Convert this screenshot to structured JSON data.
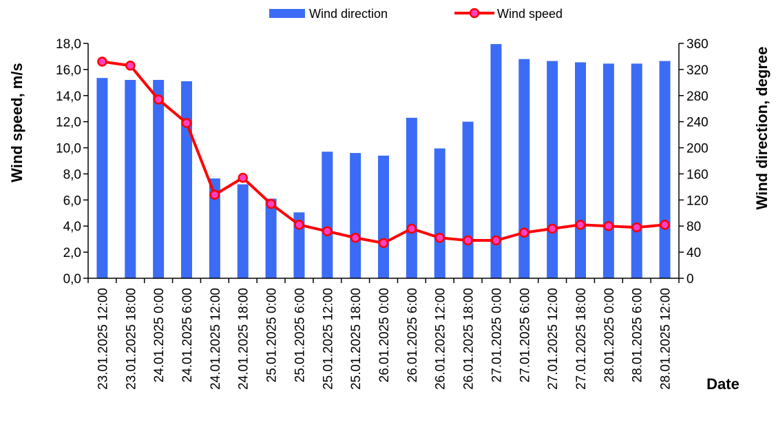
{
  "chart_data": {
    "type": "bar-line-combo",
    "x_title": "Date",
    "categories": [
      "23.01.2025 12:00",
      "23.01.2025 18:00",
      "24.01.2025 0:00",
      "24.01.2025 6:00",
      "24.01.2025 12:00",
      "24.01.2025 18:00",
      "25.01.2025 0:00",
      "25.01.2025 6:00",
      "25.01.2025 12:00",
      "25.01.2025 18:00",
      "26.01.2025 0:00",
      "26.01.2025 6:00",
      "26.01.2025 12:00",
      "26.01.2025 18:00",
      "27.01.2025 0:00",
      "27.01.2025 6:00",
      "27.01.2025 12:00",
      "27.01.2025 18:00",
      "28.01.2025 0:00",
      "28.01.2025 6:00",
      "28.01.2025 12:00"
    ],
    "left_axis": {
      "title": "Wind speed, m/s",
      "range": [
        0,
        18
      ],
      "ticks": [
        "0,0",
        "2,0",
        "4,0",
        "6,0",
        "8,0",
        "10,0",
        "12,0",
        "14,0",
        "16,0",
        "18,0"
      ]
    },
    "right_axis": {
      "title": "Wind direction, degree",
      "range": [
        0,
        360
      ],
      "ticks": [
        "0",
        "40",
        "80",
        "120",
        "160",
        "200",
        "240",
        "280",
        "320",
        "360"
      ]
    },
    "series": [
      {
        "name": "Wind direction",
        "type": "bar",
        "axis": "right",
        "color": "#3c6cf5",
        "values": [
          307,
          304,
          304,
          302,
          153,
          144,
          122,
          101,
          194,
          192,
          188,
          246,
          199,
          240,
          359,
          336,
          333,
          331,
          329,
          329,
          333
        ]
      },
      {
        "name": "Wind speed",
        "type": "line",
        "axis": "left",
        "color": "#ff0000",
        "marker_color": "#ff40c0",
        "values": [
          16.6,
          16.3,
          13.7,
          11.9,
          6.4,
          7.7,
          5.7,
          4.1,
          3.6,
          3.1,
          2.7,
          3.8,
          3.1,
          2.9,
          2.9,
          3.5,
          3.8,
          4.1,
          4.0,
          3.9,
          4.1
        ]
      }
    ],
    "legend": {
      "position": "top"
    },
    "grid": false
  }
}
